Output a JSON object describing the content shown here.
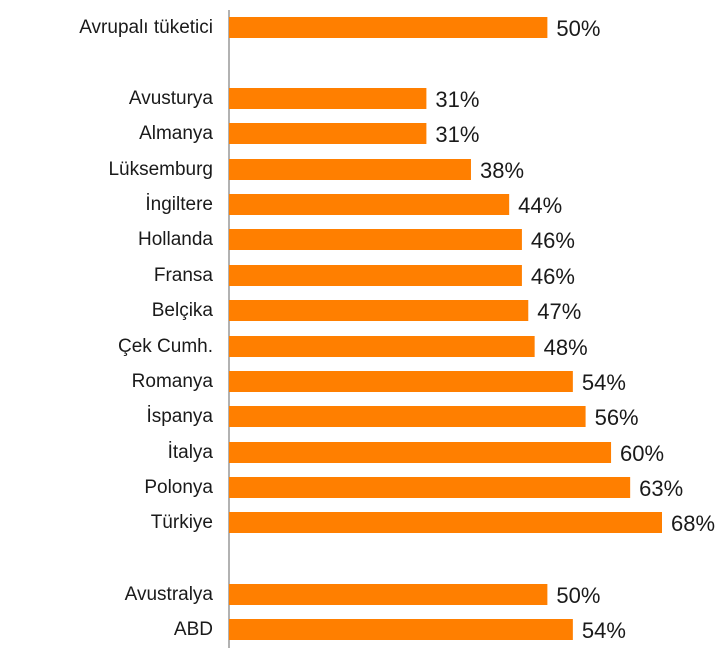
{
  "chart_data": {
    "type": "bar",
    "orientation": "horizontal",
    "title": "",
    "xlabel": "",
    "ylabel": "",
    "xlim": [
      0,
      68
    ],
    "grid": false,
    "legend": "none",
    "bar_color": "#FF7F00",
    "axis_color": "#999999",
    "value_suffix": "%",
    "categories": [
      "Avrupalı tüketici",
      "Avusturya",
      "Almanya",
      "Lüksemburg",
      "İngiltere",
      "Hollanda",
      "Fransa",
      "Belçika",
      "Çek Cumh.",
      "Romanya",
      "İspanya",
      "İtalya",
      "Polonya",
      "Türkiye",
      "Avustralya",
      "ABD"
    ],
    "values": [
      50,
      31,
      31,
      38,
      44,
      46,
      46,
      47,
      48,
      54,
      56,
      60,
      63,
      68,
      50,
      54
    ],
    "value_labels": [
      "50%",
      "31%",
      "31%",
      "38%",
      "44%",
      "46%",
      "46%",
      "47%",
      "48%",
      "54%",
      "56%",
      "60%",
      "63%",
      "68%",
      "50%",
      "54%"
    ],
    "groups": [
      [
        0
      ],
      [
        1,
        2,
        3,
        4,
        5,
        6,
        7,
        8,
        9,
        10,
        11,
        12,
        13
      ],
      [
        14,
        15
      ]
    ]
  }
}
